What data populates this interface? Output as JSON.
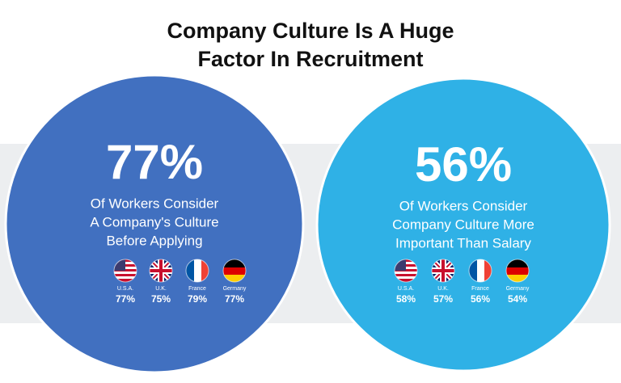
{
  "title": [
    "Company Culture Is A Huge",
    "Factor In Recruitment"
  ],
  "panels": [
    {
      "headline": "77%",
      "caption": [
        "Of Workers Consider",
        "A Company's Culture",
        "Before Applying"
      ],
      "countries": [
        {
          "name": "U.S.A.",
          "value": "77%"
        },
        {
          "name": "U.K.",
          "value": "75%"
        },
        {
          "name": "France",
          "value": "79%"
        },
        {
          "name": "Germany",
          "value": "77%"
        }
      ]
    },
    {
      "headline": "56%",
      "caption": [
        "Of Workers Consider",
        "Company Culture More",
        "Important Than Salary"
      ],
      "countries": [
        {
          "name": "U.S.A.",
          "value": "58%"
        },
        {
          "name": "U.K.",
          "value": "57%"
        },
        {
          "name": "France",
          "value": "56%"
        },
        {
          "name": "Germany",
          "value": "54%"
        }
      ]
    }
  ]
}
